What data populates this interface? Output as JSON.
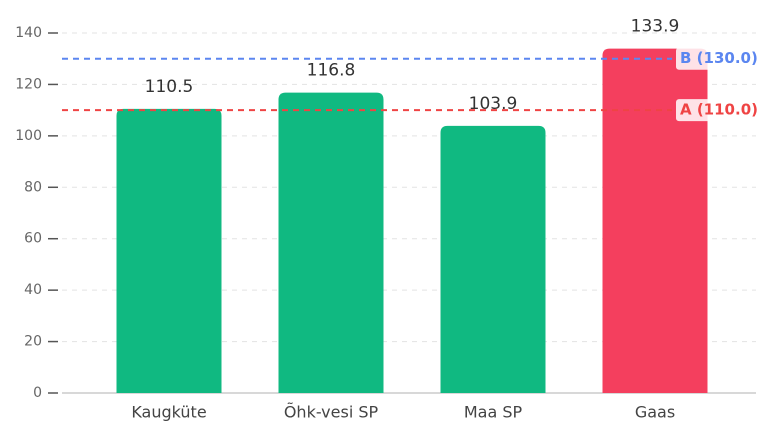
{
  "chart_data": {
    "type": "bar",
    "categories": [
      "Kaugküte",
      "Õhk-vesi SP",
      "Maa SP",
      "Gaas"
    ],
    "values": [
      110.5,
      116.8,
      103.9,
      133.9
    ],
    "colors": [
      "#10b981",
      "#10b981",
      "#10b981",
      "#f43f5e"
    ],
    "ylim": [
      0,
      140
    ],
    "yticks": [
      0,
      20,
      40,
      60,
      80,
      100,
      120,
      140
    ],
    "grid": true,
    "reference_lines": [
      {
        "label": "A (110.0)",
        "value": 110,
        "color": "#ef4444"
      },
      {
        "label": "B (130.0)",
        "value": 130,
        "color": "#5b86f0"
      }
    ]
  }
}
